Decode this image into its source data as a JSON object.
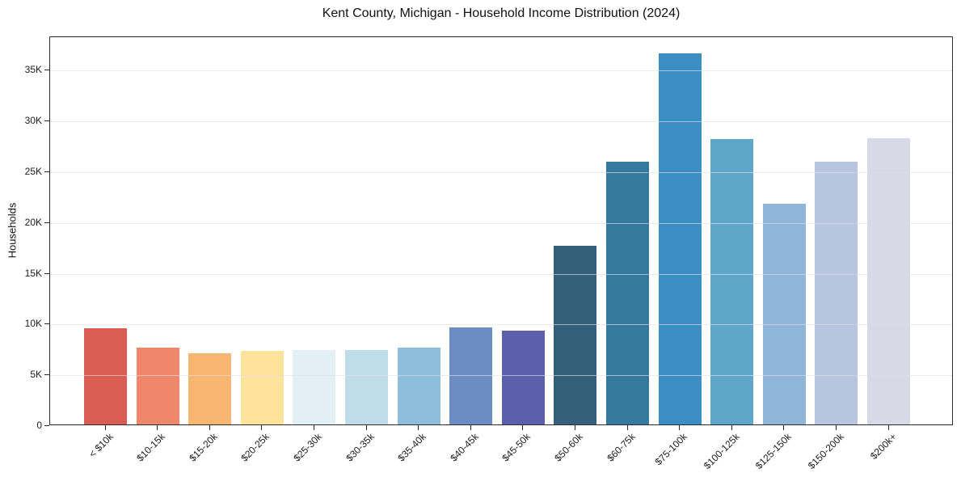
{
  "chart_data": {
    "type": "bar",
    "title": "Kent County, Michigan - Household Income Distribution (2024)",
    "xlabel": "",
    "ylabel": "Households",
    "categories": [
      "< $10k",
      "$10-15k",
      "$15-20k",
      "$20-25k",
      "$25-30k",
      "$30-35k",
      "$35-40k",
      "$40-45k",
      "$45-50k",
      "$50-60k",
      "$60-75k",
      "$75-100k",
      "$100-125k",
      "$125-150k",
      "$150-200k",
      "$200k+"
    ],
    "values": [
      9450,
      7600,
      7000,
      7250,
      7300,
      7350,
      7600,
      9550,
      9200,
      17600,
      25900,
      36550,
      28100,
      21750,
      25900,
      28200
    ],
    "bar_colors": [
      "#db5c52",
      "#f0876a",
      "#f8b671",
      "#fde39c",
      "#e2f0f5",
      "#bedde9",
      "#8fbddc",
      "#6c8dc3",
      "#5c5fac",
      "#35607a",
      "#35799f",
      "#3a8ec3",
      "#5ea7cb",
      "#8fb5d8",
      "#b7c6de",
      "#d7d9e7"
    ],
    "y_ticks": {
      "values": [
        0,
        5000,
        10000,
        15000,
        20000,
        25000,
        30000,
        35000
      ],
      "labels": [
        "0",
        "5K",
        "10K",
        "15K",
        "20K",
        "25K",
        "30K",
        "35K"
      ]
    },
    "ylim": [
      0,
      38300
    ],
    "grid": "horizontal",
    "legend": "none"
  }
}
